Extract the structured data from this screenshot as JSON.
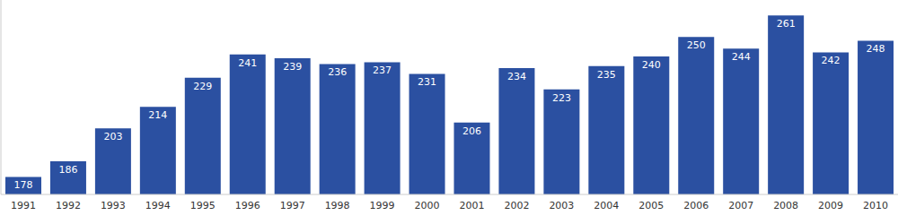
{
  "chart_data": {
    "type": "bar",
    "categories": [
      "1991",
      "1992",
      "1993",
      "1994",
      "1995",
      "1996",
      "1997",
      "1998",
      "1999",
      "2000",
      "2001",
      "2002",
      "2003",
      "2004",
      "2005",
      "2006",
      "2007",
      "2008",
      "2009",
      "2010"
    ],
    "values": [
      178,
      186,
      203,
      214,
      229,
      241,
      239,
      236,
      237,
      231,
      206,
      234,
      223,
      235,
      240,
      250,
      244,
      261,
      242,
      248
    ],
    "color": "#2b50a1",
    "ylim": [
      169,
      269
    ],
    "grid": false,
    "data_labels": true,
    "tick_labels": "x"
  }
}
